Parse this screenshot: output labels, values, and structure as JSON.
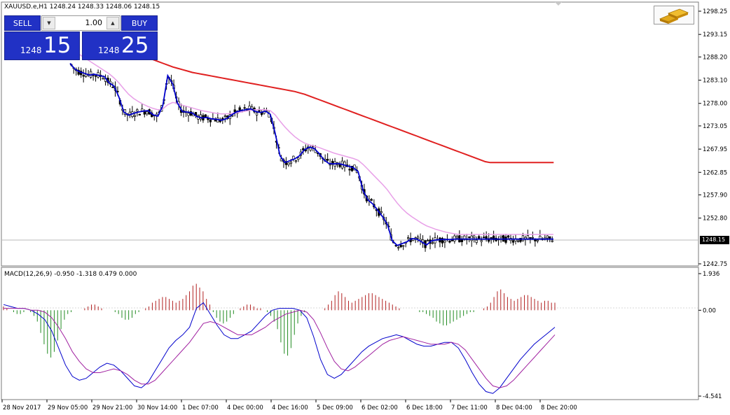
{
  "header": {
    "symbol_info": "XAUUSD.e,H1  1248.24 1248.33 1248.06 1248.15"
  },
  "trade_panel": {
    "sell_label": "SELL",
    "buy_label": "BUY",
    "lot_value": "1.00",
    "sell_price_small": "1248",
    "sell_price_big": "15",
    "buy_price_small": "1248",
    "buy_price_big": "25"
  },
  "price_axis": {
    "ticks": [
      "1298.25",
      "1293.15",
      "1288.20",
      "1283.10",
      "1278.00",
      "1273.05",
      "1267.95",
      "1262.85",
      "1257.90",
      "1252.80",
      "1242.75"
    ],
    "current_price": "1248.15"
  },
  "indicator": {
    "label": "MACD(12,26,9) -0.950 -1.318 0.479 0.000",
    "ticks": [
      "1.936",
      "0.00",
      "-4.541"
    ]
  },
  "time_axis": {
    "labels": [
      "28 Nov 2017",
      "29 Nov 05:00",
      "29 Nov 21:00",
      "30 Nov 14:00",
      "1 Dec 07:00",
      "4 Dec 00:00",
      "4 Dec 16:00",
      "5 Dec 09:00",
      "6 Dec 02:00",
      "6 Dec 18:00",
      "7 Dec 11:00",
      "8 Dec 04:00",
      "8 Dec 20:00"
    ]
  },
  "colors": {
    "fast_ma": "#0000cc",
    "slow_ma": "#e8a0e8",
    "long_ma": "#e02020",
    "macd_positive": "#b22222",
    "macd_negative": "#228b22",
    "macd_main": "#0000cc",
    "macd_signal": "#a020a0",
    "panel_blue": "#2131c5"
  },
  "chart_data": [
    {
      "type": "line",
      "x": [
        0,
        4,
        8,
        12,
        16,
        20,
        24,
        28,
        32,
        36,
        40,
        44,
        48,
        52,
        56,
        60,
        64,
        68,
        72,
        76,
        80,
        84,
        88,
        92,
        96,
        100,
        104,
        108,
        112,
        116,
        120,
        124,
        128,
        132,
        136,
        140,
        144,
        148,
        152,
        156,
        160,
        164,
        168,
        172,
        176,
        180,
        184,
        188,
        192,
        196,
        200,
        204,
        208,
        212,
        216,
        220,
        224,
        228,
        232,
        236,
        240,
        244,
        248,
        252,
        256,
        260,
        264,
        268,
        272,
        276,
        280,
        284,
        288,
        292,
        296,
        300,
        304,
        308,
        312,
        316,
        320,
        324,
        328,
        332,
        336,
        340,
        344,
        348,
        352,
        356,
        360,
        364,
        368,
        372,
        376,
        380,
        384,
        388,
        392,
        396
      ],
      "series": [
        {
          "values": [
            1286.8,
            1285.5,
            1284.9,
            1284.6,
            1284.2,
            1284.4,
            1284.1,
            1283.9,
            1282.5,
            1281.8,
            1279.4,
            1276.1,
            1275.4,
            1275.8,
            1276.1,
            1276.3,
            1276.4,
            1275.5,
            1275.2,
            1277.5,
            1284.1,
            1282.3,
            1278.1,
            1276.2,
            1276.1,
            1275.9,
            1275.1,
            1274.8,
            1274.9,
            1274.6,
            1274.5,
            1274.3,
            1274.6,
            1275.4,
            1276.1,
            1276.4,
            1276.6,
            1276.8,
            1276.2,
            1276.0,
            1276.3,
            1275.6,
            1271.5,
            1266.5,
            1265.0,
            1265.4,
            1265.8,
            1266.5,
            1267.8,
            1268.4,
            1268.1,
            1267.0,
            1265.6,
            1264.8,
            1264.7,
            1264.8,
            1264.5,
            1264.2,
            1263.9,
            1263.0,
            1258.9,
            1256.8,
            1255.9,
            1254.5,
            1253.1,
            1251.4,
            1247.8,
            1246.8,
            1247.2,
            1247.6,
            1248.3,
            1248.2,
            1247.6,
            1246.9,
            1247.8,
            1248.0,
            1248.1,
            1248.1,
            1248.1,
            1248.2,
            1248.2,
            1248.2,
            1248.2,
            1248.2,
            1248.2,
            1248.2,
            1248.2,
            1248.2,
            1248.2,
            1248.2,
            1248.2,
            1248.2,
            1248.2,
            1248.2,
            1248.2,
            1248.2,
            1248.2,
            1248.2,
            1248.2,
            1248.2
          ]
        },
        {
          "values": [
            1290.0,
            1289.4,
            1288.7,
            1288.0,
            1287.3,
            1286.6,
            1285.9,
            1285.2,
            1284.5,
            1283.6,
            1282.5,
            1281.2,
            1280.0,
            1279.1,
            1278.4,
            1277.8,
            1277.3,
            1276.9,
            1276.6,
            1276.8,
            1277.7,
            1278.2,
            1278.0,
            1277.6,
            1277.3,
            1277.0,
            1276.7,
            1276.4,
            1276.2,
            1276.0,
            1275.8,
            1275.7,
            1275.7,
            1275.8,
            1275.9,
            1276.1,
            1276.3,
            1276.5,
            1276.6,
            1276.6,
            1276.6,
            1276.4,
            1275.5,
            1274.1,
            1272.8,
            1271.7,
            1270.7,
            1269.9,
            1269.3,
            1268.9,
            1268.6,
            1268.3,
            1267.9,
            1267.5,
            1267.1,
            1266.8,
            1266.5,
            1266.2,
            1265.9,
            1265.5,
            1264.6,
            1263.5,
            1262.4,
            1261.3,
            1260.2,
            1259.0,
            1257.5,
            1256.1,
            1254.9,
            1253.9,
            1253.1,
            1252.4,
            1251.7,
            1251.1,
            1250.7,
            1250.3,
            1250.0,
            1249.7,
            1249.5,
            1249.3,
            1249.2,
            1249.2,
            1249.2,
            1249.2,
            1249.2,
            1249.2,
            1249.2,
            1249.2,
            1249.2,
            1249.2,
            1249.2,
            1249.2,
            1249.2,
            1249.2,
            1249.2,
            1249.2,
            1249.2,
            1249.2,
            1249.2,
            1249.2
          ]
        },
        {
          "values": [
            1290.4,
            1290.0,
            1289.6,
            1289.2,
            1288.8,
            1288.4,
            1288.0,
            1287.6,
            1287.2,
            1286.8,
            1286.4,
            1286.0,
            1285.7,
            1285.4,
            1285.1,
            1284.8,
            1284.6,
            1284.4,
            1284.2,
            1284.0,
            1283.8,
            1283.6,
            1283.4,
            1283.2,
            1283.0,
            1282.8,
            1282.6,
            1282.4,
            1282.2,
            1282.0,
            1281.8,
            1281.6,
            1281.4,
            1281.2,
            1281.0,
            1280.8,
            1280.6,
            1280.3,
            1280.0,
            1279.6,
            1279.2,
            1278.8,
            1278.4,
            1278.0,
            1277.6,
            1277.2,
            1276.8,
            1276.4,
            1276.0,
            1275.6,
            1275.2,
            1274.8,
            1274.4,
            1274.0,
            1273.6,
            1273.2,
            1272.8,
            1272.4,
            1272.0,
            1271.6,
            1271.2,
            1270.8,
            1270.4,
            1270.0,
            1269.6,
            1269.2,
            1268.8,
            1268.4,
            1268.0,
            1267.6,
            1267.2,
            1266.8,
            1266.4,
            1266.0,
            1265.6,
            1265.2,
            1265.0,
            1265.0,
            1265.0,
            1265.0,
            1265.0,
            1265.0,
            1265.0,
            1265.0,
            1265.0,
            1265.0,
            1265.0,
            1265.0,
            1265.0,
            1265.0,
            1265.0,
            1265.0,
            1265.0,
            1265.0,
            1265.0,
            1265.0,
            1265.0,
            1265.0,
            1265.0,
            1265.0
          ]
        }
      ]
    },
    {
      "type": "bar",
      "values": [
        0.2,
        0.1,
        0.0,
        -0.1,
        -0.2,
        -0.2,
        -0.1,
        0.0,
        -0.1,
        -0.3,
        -0.6,
        -1.2,
        -1.8,
        -2.3,
        -2.5,
        -2.2,
        -1.6,
        -1.0,
        -0.5,
        -0.2,
        -0.1,
        0.0,
        0.0,
        0.0,
        0.1,
        0.2,
        0.3,
        0.3,
        0.2,
        0.1,
        0.0,
        0.0,
        0.0,
        -0.1,
        -0.2,
        -0.4,
        -0.5,
        -0.5,
        -0.4,
        -0.2,
        -0.1,
        0.0,
        0.1,
        0.2,
        0.4,
        0.5,
        0.6,
        0.7,
        0.7,
        0.6,
        0.5,
        0.4,
        0.5,
        0.6,
        0.8,
        1.0,
        1.3,
        1.4,
        1.2,
        1.0,
        0.6,
        0.3,
        -0.1,
        -0.4,
        -0.6,
        -0.7,
        -0.6,
        -0.4,
        -0.2,
        0.0,
        0.1,
        0.2,
        0.3,
        0.3,
        0.2,
        0.1,
        0.1,
        0.0,
        -0.1,
        -0.3,
        -0.6,
        -1.0,
        -1.7,
        -2.3,
        -2.4,
        -2.0,
        -1.3,
        -0.7,
        -0.3,
        -0.1,
        0.0,
        0.0,
        0.0,
        0.0,
        0.0,
        0.1,
        0.3,
        0.5,
        0.8,
        1.0,
        0.9,
        0.7,
        0.5,
        0.4,
        0.5,
        0.6,
        0.7,
        0.8,
        0.9,
        0.9,
        0.8,
        0.7,
        0.6,
        0.5,
        0.4,
        0.3,
        0.2,
        0.1,
        0.0,
        0.0,
        0.0,
        0.0,
        0.0,
        -0.1,
        -0.1,
        -0.2,
        -0.3,
        -0.4,
        -0.6,
        -0.7,
        -0.8,
        -0.8,
        -0.7,
        -0.6,
        -0.5,
        -0.4,
        -0.3,
        -0.2,
        -0.1,
        -0.1,
        0.0,
        0.0,
        0.1,
        0.2,
        0.4,
        0.7,
        1.0,
        1.1,
        0.9,
        0.7,
        0.6,
        0.5,
        0.6,
        0.7,
        0.8,
        0.8,
        0.7,
        0.6,
        0.5,
        0.4,
        0.5,
        0.5,
        0.4,
        0.4
      ],
      "series": [
        {
          "values": [
            0.3,
            0.2,
            0.1,
            0.1,
            0.0,
            -0.2,
            -0.5,
            -1.1,
            -2.0,
            -2.9,
            -3.5,
            -3.7,
            -3.6,
            -3.3,
            -3.0,
            -2.8,
            -2.9,
            -3.2,
            -3.6,
            -4.0,
            -4.1,
            -3.8,
            -3.2,
            -2.6,
            -2.0,
            -1.6,
            -1.3,
            -0.9,
            0.1,
            0.4,
            -0.2,
            -0.8,
            -1.3,
            -1.5,
            -1.5,
            -1.3,
            -1.1,
            -0.7,
            -0.3,
            0.0,
            0.1,
            0.1,
            0.1,
            0.0,
            -0.4,
            -1.4,
            -2.6,
            -3.4,
            -3.6,
            -3.4,
            -3.0,
            -2.6,
            -2.2,
            -1.9,
            -1.7,
            -1.5,
            -1.4,
            -1.3,
            -1.4,
            -1.6,
            -1.8,
            -1.9,
            -1.9,
            -1.8,
            -1.7,
            -1.7,
            -2.0,
            -2.6,
            -3.3,
            -3.9,
            -4.3,
            -4.4,
            -4.1,
            -3.6,
            -3.1,
            -2.6,
            -2.2,
            -1.8,
            -1.5,
            -1.2,
            -0.9
          ]
        },
        {
          "values": [
            0.1,
            0.1,
            0.1,
            0.1,
            0.0,
            0.0,
            -0.1,
            -0.4,
            -0.9,
            -1.5,
            -2.2,
            -2.7,
            -3.1,
            -3.3,
            -3.3,
            -3.2,
            -3.1,
            -3.2,
            -3.4,
            -3.7,
            -3.9,
            -3.9,
            -3.7,
            -3.3,
            -2.9,
            -2.5,
            -2.1,
            -1.7,
            -1.2,
            -0.7,
            -0.6,
            -0.7,
            -0.9,
            -1.1,
            -1.3,
            -1.3,
            -1.3,
            -1.1,
            -0.9,
            -0.6,
            -0.4,
            -0.2,
            -0.1,
            0.0,
            -0.1,
            -0.5,
            -1.2,
            -2.0,
            -2.7,
            -3.1,
            -3.2,
            -3.0,
            -2.7,
            -2.4,
            -2.1,
            -1.8,
            -1.6,
            -1.5,
            -1.4,
            -1.5,
            -1.6,
            -1.7,
            -1.8,
            -1.8,
            -1.8,
            -1.7,
            -1.8,
            -2.1,
            -2.6,
            -3.1,
            -3.6,
            -4.0,
            -4.1,
            -4.0,
            -3.7,
            -3.3,
            -2.9,
            -2.5,
            -2.1,
            -1.7,
            -1.3
          ]
        }
      ]
    }
  ]
}
